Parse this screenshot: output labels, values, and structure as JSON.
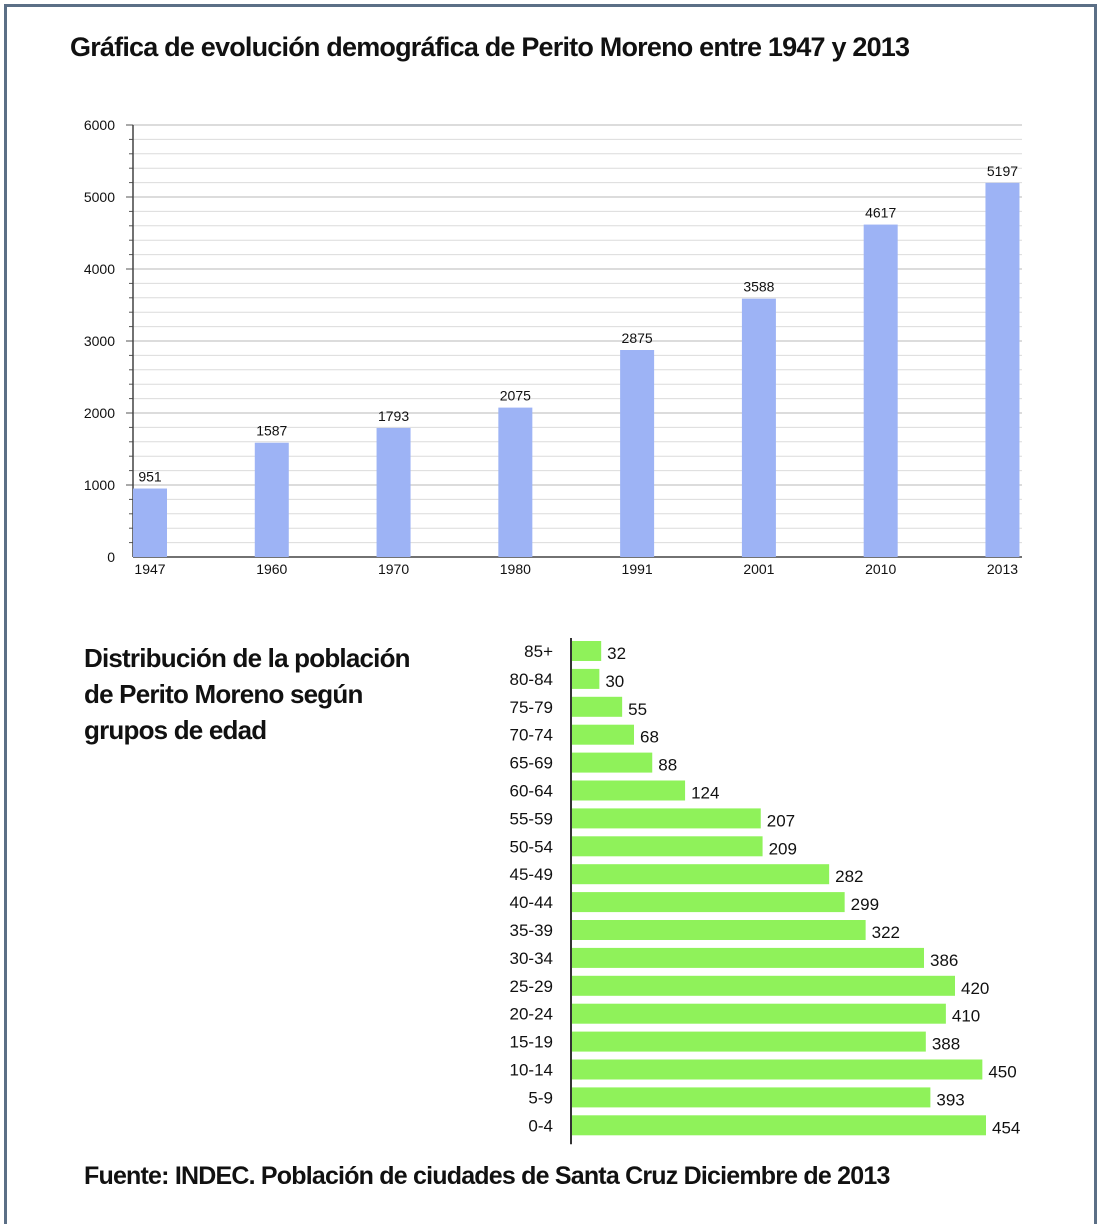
{
  "chart_data": [
    {
      "type": "bar",
      "orientation": "vertical",
      "title": "Gráfica de evolución demográfica de Perito Moreno entre 1947 y 2013",
      "categories": [
        "1947",
        "1960",
        "1970",
        "1980",
        "1991",
        "2001",
        "2010",
        "2013"
      ],
      "values": [
        951,
        1587,
        1793,
        2075,
        2875,
        3588,
        4617,
        5197
      ],
      "ylim": [
        0,
        6000
      ],
      "yticks": [
        "0",
        "1000",
        "2000",
        "3000",
        "4000",
        "5000",
        "6000"
      ],
      "grid": true,
      "bar_color": "#9db3f5"
    },
    {
      "type": "bar",
      "orientation": "horizontal",
      "title": "Distribución de la población de Perito Moreno según grupos de edad",
      "title_lines": [
        "Distribución de la población",
        "de Perito Moreno según",
        "grupos de edad"
      ],
      "categories": [
        "85+",
        "80-84",
        "75-79",
        "70-74",
        "65-69",
        "60-64",
        "55-59",
        "50-54",
        "45-49",
        "40-44",
        "35-39",
        "30-34",
        "25-29",
        "20-24",
        "15-19",
        "10-14",
        "5-9",
        "0-4"
      ],
      "values": [
        32,
        30,
        55,
        68,
        88,
        124,
        207,
        209,
        282,
        299,
        322,
        386,
        420,
        410,
        388,
        450,
        393,
        454
      ],
      "bar_color": "#8ff25a"
    }
  ],
  "source": "Fuente: INDEC. Población de ciudades de Santa Cruz  Diciembre de 2013"
}
